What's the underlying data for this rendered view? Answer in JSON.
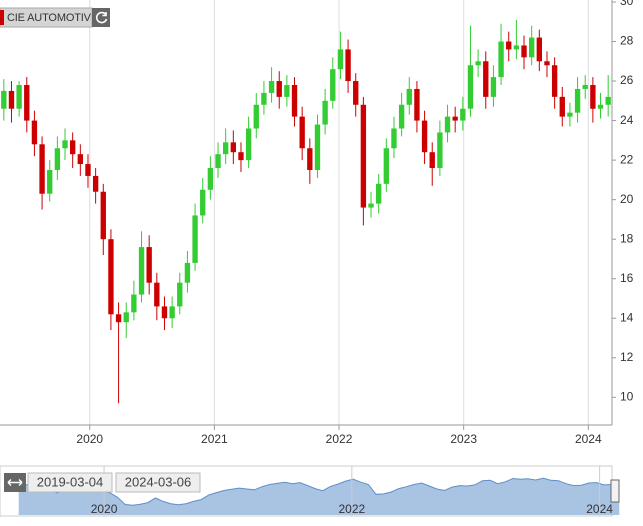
{
  "chart_data": {
    "type": "candlestick",
    "name": "CIE AUTOMOTIV",
    "up_color": "#33cc33",
    "down_color": "#cc0000",
    "xlim": [
      2019.28,
      2024.19
    ],
    "xticks": [
      2020,
      2021,
      2022,
      2023,
      2024
    ],
    "ylim": [
      8.6,
      30.1
    ],
    "yticks": [
      10,
      12,
      14,
      16,
      18,
      20,
      22,
      24,
      26,
      28,
      30
    ],
    "grid": true,
    "open": [
      24.6,
      25.5,
      24.6,
      25.8,
      24.0,
      22.8,
      20.3,
      21.5,
      22.6,
      23.0,
      22.3,
      21.8,
      21.2,
      20.4,
      18.0,
      14.2,
      13.8,
      14.3,
      15.2,
      17.6,
      15.8,
      14.6,
      14.0,
      14.6,
      15.8,
      16.8,
      19.2,
      20.5,
      21.6,
      22.3,
      22.9,
      22.4,
      22.0,
      23.6,
      24.8,
      25.4,
      26.0,
      25.2,
      25.8,
      24.2,
      22.6,
      21.5,
      23.8,
      25.0,
      26.6,
      27.6,
      26.0,
      24.8,
      19.6,
      19.8,
      20.8,
      22.6,
      23.6,
      24.8,
      25.6,
      24.0,
      22.4,
      21.6,
      23.4,
      24.2,
      24.0,
      24.6,
      26.8,
      27.0,
      25.2,
      26.2,
      28.0,
      27.6,
      27.8,
      27.2,
      28.2,
      27.0,
      26.8,
      25.2,
      24.2,
      24.4,
      25.6,
      25.8,
      24.6,
      24.8
    ],
    "high": [
      26.1,
      26.0,
      26.0,
      26.2,
      24.5,
      23.2,
      22.0,
      23.2,
      23.6,
      23.4,
      22.8,
      22.3,
      21.6,
      20.8,
      18.5,
      14.8,
      14.8,
      15.9,
      18.4,
      18.2,
      16.3,
      15.1,
      15.1,
      16.3,
      17.4,
      19.8,
      21.1,
      22.2,
      22.9,
      23.6,
      23.5,
      22.9,
      24.2,
      25.4,
      26.0,
      26.7,
      26.5,
      26.3,
      26.2,
      24.7,
      23.1,
      24.3,
      25.6,
      27.2,
      28.5,
      28.1,
      26.4,
      25.2,
      20.4,
      21.3,
      23.1,
      24.2,
      25.4,
      26.2,
      26.0,
      24.5,
      22.9,
      24.0,
      24.8,
      24.7,
      25.2,
      28.8,
      27.6,
      27.5,
      26.8,
      28.9,
      28.5,
      29.1,
      28.3,
      28.8,
      28.6,
      27.5,
      27.2,
      25.7,
      24.9,
      26.2,
      26.3,
      26.2,
      25.4,
      26.3
    ],
    "low": [
      24.0,
      23.9,
      24.2,
      23.4,
      22.2,
      19.5,
      19.9,
      21.0,
      22.0,
      21.6,
      21.2,
      20.6,
      19.8,
      17.2,
      13.4,
      9.7,
      13.0,
      13.9,
      14.8,
      15.2,
      13.9,
      13.4,
      13.5,
      14.2,
      15.3,
      16.4,
      18.8,
      20.0,
      21.1,
      21.8,
      21.8,
      21.4,
      21.6,
      23.1,
      24.3,
      24.9,
      24.6,
      24.7,
      23.7,
      22.0,
      20.8,
      21.1,
      23.3,
      24.6,
      26.1,
      25.4,
      24.2,
      18.7,
      19.1,
      19.3,
      20.4,
      22.1,
      23.2,
      24.3,
      23.4,
      21.8,
      20.7,
      21.2,
      22.9,
      23.4,
      23.5,
      24.2,
      26.2,
      24.6,
      24.7,
      25.8,
      27.0,
      27.1,
      26.6,
      26.8,
      26.5,
      26.2,
      24.6,
      23.7,
      23.7,
      23.9,
      25.1,
      23.9,
      24.1,
      24.2
    ],
    "close": [
      25.5,
      24.6,
      25.8,
      24.0,
      22.8,
      20.3,
      21.5,
      22.6,
      23.0,
      22.3,
      21.8,
      21.2,
      20.4,
      18.0,
      14.2,
      13.8,
      14.3,
      15.2,
      17.6,
      15.8,
      14.6,
      14.0,
      14.6,
      15.8,
      16.8,
      19.2,
      20.5,
      21.6,
      22.3,
      22.9,
      22.4,
      22.0,
      23.6,
      24.8,
      25.4,
      26.0,
      25.2,
      25.8,
      24.2,
      22.6,
      21.5,
      23.8,
      25.0,
      26.6,
      27.6,
      26.0,
      24.8,
      19.6,
      19.8,
      20.8,
      22.6,
      23.6,
      24.8,
      25.6,
      24.0,
      22.4,
      21.6,
      23.4,
      24.2,
      24.0,
      24.6,
      26.8,
      27.0,
      25.2,
      26.2,
      28.0,
      27.6,
      27.8,
      27.2,
      28.2,
      27.0,
      26.8,
      25.2,
      24.2,
      24.4,
      25.6,
      25.8,
      24.6,
      24.8,
      25.2
    ],
    "navigator": {
      "range_start": "2019-03-04",
      "range_end": "2024-03-06",
      "xlim": [
        2019.16,
        2024.1
      ],
      "xticks": [
        2020,
        2022,
        2024
      ]
    }
  }
}
